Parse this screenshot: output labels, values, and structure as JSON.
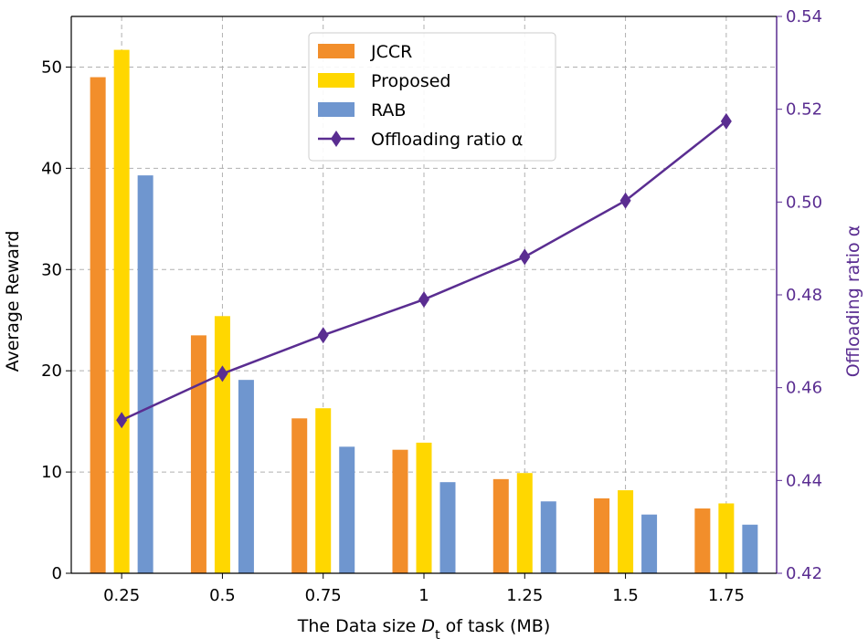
{
  "chart_data": {
    "type": "bar",
    "categories": [
      "0.25",
      "0.5",
      "0.75",
      "1",
      "1.25",
      "1.5",
      "1.75"
    ],
    "series": [
      {
        "name": "JCCR",
        "values": [
          49.0,
          23.5,
          15.3,
          12.2,
          9.3,
          7.4,
          6.4
        ],
        "color": "#f28e2b"
      },
      {
        "name": "Proposed",
        "values": [
          51.7,
          25.4,
          16.3,
          12.9,
          9.9,
          8.2,
          6.9
        ],
        "color": "#ffd700"
      },
      {
        "name": "RAB",
        "values": [
          39.3,
          19.1,
          12.5,
          9.0,
          7.1,
          5.8,
          4.8
        ],
        "color": "#6f96cf"
      }
    ],
    "line_series": {
      "name": "Offloading ratio α",
      "values": [
        0.453,
        0.463,
        0.4713,
        0.479,
        0.4882,
        0.5003,
        0.5174
      ],
      "color": "#5a2d91",
      "axis": "right"
    },
    "title": "",
    "xlabel": "The Data size D_t of task (MB)",
    "xlabel_main": "The Data size ",
    "xlabel_var": "D",
    "xlabel_sub": "t",
    "xlabel_rest": " of task (MB)",
    "ylabel": "Average Reward",
    "ylabel_right": "Offloading ratio α",
    "ylim": [
      0,
      55
    ],
    "ylim_right": [
      0.42,
      0.54
    ],
    "yticks": [
      "0",
      "10",
      "20",
      "30",
      "40",
      "50"
    ],
    "yticks_right": [
      "0.42",
      "0.44",
      "0.46",
      "0.48",
      "0.50",
      "0.52",
      "0.54"
    ],
    "grid": true,
    "legend_position": "top-center"
  }
}
